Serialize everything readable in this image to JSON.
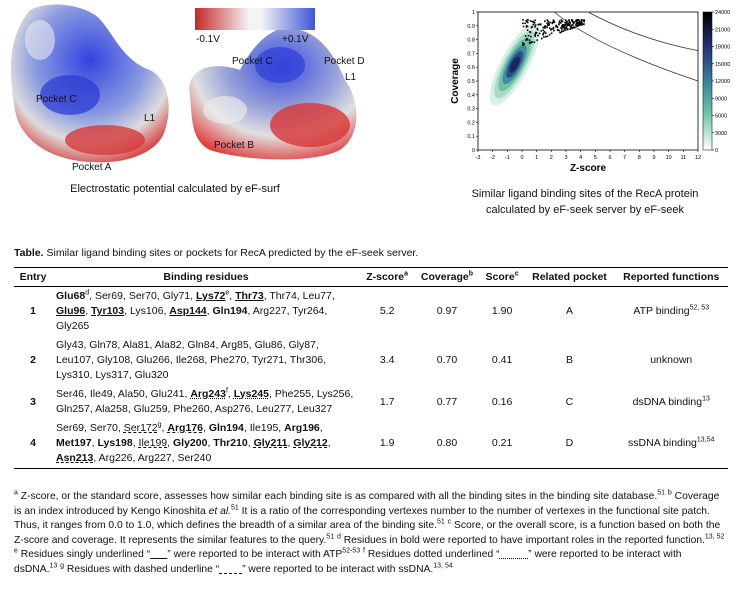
{
  "figure": {
    "left": {
      "labels": [
        "-0.1V",
        "+0.1V",
        "Pocket C",
        "Pocket A",
        "L1",
        "Pocket C",
        "Pocket D",
        "L1",
        "Pocket B"
      ],
      "caption": "Electrostatic potential calculated by eF-surf"
    },
    "right": {
      "xlabel": "Z-score",
      "ylabel": "Coverage",
      "xlim": [
        -3,
        12
      ],
      "ylim": [
        0,
        1
      ],
      "xticks": [
        -3,
        -2,
        -1,
        0,
        1,
        2,
        3,
        4,
        5,
        6,
        7,
        8,
        9,
        10,
        11,
        12
      ],
      "yticks": [
        0,
        0.1,
        0.2,
        0.3,
        0.4,
        0.5,
        0.6,
        0.7,
        0.8,
        0.9,
        1
      ],
      "clim": [
        0,
        24000
      ],
      "cticks": [
        0,
        3000,
        6000,
        9000,
        12000,
        15000,
        18000,
        21000,
        24000
      ],
      "caption": [
        "Similar ligand binding sites of the RecA protein",
        "calculated by eF-seek server by eF-seek"
      ]
    }
  },
  "table": {
    "label": "Table.",
    "caption": "Similar ligand binding sites or pockets for RecA predicted by the eF-seek server.",
    "separator": ", ",
    "headers": [
      {
        "t": "Entry"
      },
      {
        "t": "Binding residues"
      },
      {
        "t": "Z-score",
        "sup": "a"
      },
      {
        "t": "Coverage",
        "sup": "b"
      },
      {
        "t": "Score",
        "sup": "c"
      },
      {
        "t": "Related pocket"
      },
      {
        "t": "Reported functions"
      }
    ],
    "rows": [
      {
        "entry": "1",
        "residues": [
          {
            "t": "Glu68",
            "sup": "d",
            "b": true
          },
          {
            "t": "Ser69"
          },
          {
            "t": "Ser70"
          },
          {
            "t": "Gly71"
          },
          {
            "t": "Lys72",
            "sup": "e",
            "b": true,
            "u": "solid"
          },
          {
            "t": "Thr73",
            "b": true,
            "u": "solid"
          },
          {
            "t": "Thr74"
          },
          {
            "t": "Leu77"
          },
          {
            "t": "Glu96",
            "b": true,
            "u": "solid"
          },
          {
            "t": "Tyr103",
            "b": true,
            "u": "solid"
          },
          {
            "t": "Lys106"
          },
          {
            "t": "Asp144",
            "b": true,
            "u": "solid"
          },
          {
            "t": "Gln194",
            "b": true
          },
          {
            "t": "Arg227"
          },
          {
            "t": "Tyr264"
          },
          {
            "t": "Gly265"
          }
        ],
        "z": "5.2",
        "coverage": "0.97",
        "score": "1.90",
        "pocket": "A",
        "function": {
          "t": "ATP binding",
          "sup": "52, 53"
        }
      },
      {
        "entry": "2",
        "residues": [
          {
            "t": "Gly43"
          },
          {
            "t": "Gln78"
          },
          {
            "t": "Ala81"
          },
          {
            "t": "Ala82"
          },
          {
            "t": "Gln84"
          },
          {
            "t": "Arg85"
          },
          {
            "t": "Glu86"
          },
          {
            "t": "Gly87"
          },
          {
            "t": "Leu107"
          },
          {
            "t": "Gly108"
          },
          {
            "t": "Glu266"
          },
          {
            "t": "Ile268"
          },
          {
            "t": "Phe270"
          },
          {
            "t": "Tyr271"
          },
          {
            "t": "Thr306"
          },
          {
            "t": "Lys310"
          },
          {
            "t": "Lys317"
          },
          {
            "t": "Glu320"
          }
        ],
        "z": "3.4",
        "coverage": "0.70",
        "score": "0.41",
        "pocket": "B",
        "function": {
          "t": "unknown"
        }
      },
      {
        "entry": "3",
        "residues": [
          {
            "t": "Ser46"
          },
          {
            "t": "Ile49"
          },
          {
            "t": "Ala50"
          },
          {
            "t": "Glu241"
          },
          {
            "t": "Arg243",
            "sup": "f",
            "b": true,
            "u": "dotted"
          },
          {
            "t": "Lys245",
            "b": true,
            "u": "dotted"
          },
          {
            "t": "Phe255"
          },
          {
            "t": "Lys256"
          },
          {
            "t": "Gln257"
          },
          {
            "t": "Ala258"
          },
          {
            "t": "Glu259"
          },
          {
            "t": "Phe260"
          },
          {
            "t": "Asp276"
          },
          {
            "t": "Leu277"
          },
          {
            "t": "Leu327"
          }
        ],
        "z": "1.7",
        "coverage": "0.77",
        "score": "0.16",
        "pocket": "C",
        "function": {
          "t": "dsDNA binding",
          "sup": "13"
        }
      },
      {
        "entry": "4",
        "residues": [
          {
            "t": "Ser69"
          },
          {
            "t": "Ser70"
          },
          {
            "t": "Ser172",
            "sup": "g",
            "u": "dashed"
          },
          {
            "t": "Arg176",
            "b": true,
            "u": "dashed"
          },
          {
            "t": "Gln194",
            "b": true
          },
          {
            "t": "Ile195"
          },
          {
            "t": "Arg196",
            "b": true
          },
          {
            "t": "Met197",
            "b": true
          },
          {
            "t": "Lys198",
            "b": true
          },
          {
            "t": "Ile199",
            "u": "dashed"
          },
          {
            "t": "Gly200",
            "b": true
          },
          {
            "t": "Thr210",
            "b": true
          },
          {
            "t": "Gly211",
            "b": true,
            "u": "dashed"
          },
          {
            "t": "Gly212",
            "b": true,
            "u": "dashed"
          },
          {
            "t": "Asn213",
            "b": true,
            "u": "dashed"
          },
          {
            "t": "Arg226"
          },
          {
            "t": "Arg227"
          },
          {
            "t": "Ser240"
          }
        ],
        "z": "1.9",
        "coverage": "0.80",
        "score": "0.21",
        "pocket": "D",
        "function": {
          "t": "ssDNA binding",
          "sup": "13,54"
        }
      }
    ]
  },
  "footnotes": [
    {
      "sup": "a"
    },
    {
      "t": " Z-score, or the standard score, assesses how similar each binding site is as compared with all the binding sites in the binding site database."
    },
    {
      "sup": "51"
    },
    {
      "t": " "
    },
    {
      "sup": "b"
    },
    {
      "t": " Coverage is an index introduced by Kengo Kinoshita "
    },
    {
      "i": "et al."
    },
    {
      "sup": "51"
    },
    {
      "t": " It is a ratio of the corresponding vertexes number to the number of vertexes in the functional site patch. Thus, it ranges from 0.0 to 1.0, which defines the breadth of a similar area of the binding site."
    },
    {
      "sup": "51"
    },
    {
      "t": " "
    },
    {
      "sup": "c"
    },
    {
      "t": " Score, or the overall score, is a function based on both the Z-score and coverage. It represents the similar features to the query."
    },
    {
      "sup": "51"
    },
    {
      "t": " "
    },
    {
      "sup": "d"
    },
    {
      "t": " Residues in bold were reported to have important roles in the reported function."
    },
    {
      "sup": "13, 52"
    },
    {
      "t": " "
    },
    {
      "sup": "e"
    },
    {
      "t": " Residues singly underlined “"
    },
    {
      "u": "solid",
      "t": "___"
    },
    {
      "t": "” were reported to be interact with ATP"
    },
    {
      "sup": "52-53"
    },
    {
      "t": " "
    },
    {
      "sup": "f"
    },
    {
      "t": " Residues dotted underlined “"
    },
    {
      "u": "dotted",
      "t": "_____"
    },
    {
      "t": "” were reported to be interact with dsDNA."
    },
    {
      "sup": "13"
    },
    {
      "t": " "
    },
    {
      "sup": "g"
    },
    {
      "t": " Residues with dashed underline “"
    },
    {
      "u": "dashed",
      "t": "____"
    },
    {
      "t": "” were reported to be interact with ssDNA."
    },
    {
      "sup": "13, 54"
    }
  ]
}
